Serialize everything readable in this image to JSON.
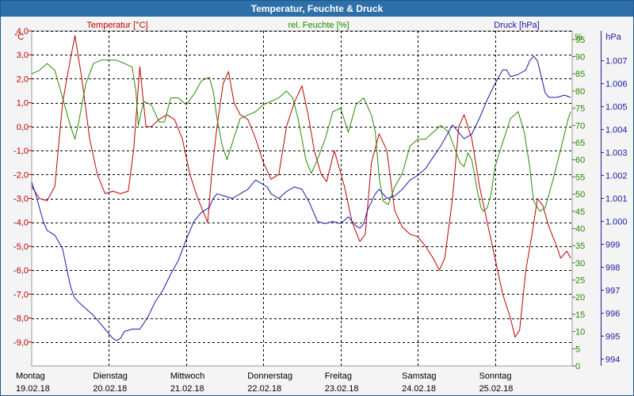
{
  "window": {
    "title": "Temperatur, Feuchte & Druck"
  },
  "chart_data": {
    "type": "line",
    "title": "Temperatur, Feuchte & Druck",
    "x_range": [
      0,
      7
    ],
    "x_labels": [
      {
        "day": "Montag",
        "date": "19.02.18",
        "x": 0
      },
      {
        "day": "Dienstag",
        "date": "20.02.18",
        "x": 1
      },
      {
        "day": "Mittwoch",
        "date": "21.02.18",
        "x": 2
      },
      {
        "day": "Donnerstag",
        "date": "22.02.18",
        "x": 3
      },
      {
        "day": "Freitag",
        "date": "23.02.18",
        "x": 4
      },
      {
        "day": "Samstag",
        "date": "24.02.18",
        "x": 5
      },
      {
        "day": "Sonntag",
        "date": "25.02.18",
        "x": 6
      }
    ],
    "axes": {
      "temperature": {
        "label": "Temperatur [°C]",
        "unit": "°C",
        "color": "#c00000",
        "range": [
          -10,
          4
        ],
        "ticks": [
          "4,0",
          "3,0",
          "2,0",
          "1,0",
          "0,0",
          "-1,0",
          "-2,0",
          "-3,0",
          "-4,0",
          "-5,0",
          "-6,0",
          "-7,0",
          "-8,0",
          "-9,0"
        ],
        "tick_values": [
          4,
          3,
          2,
          1,
          0,
          -1,
          -2,
          -3,
          -4,
          -5,
          -6,
          -7,
          -8,
          -9
        ]
      },
      "humidity": {
        "label": "rel. Feuchte [%]",
        "unit": "%",
        "color": "#2a8a00",
        "range": [
          0,
          97.5
        ],
        "ticks": [
          "95",
          "90",
          "85",
          "80",
          "75",
          "70",
          "65",
          "60",
          "55",
          "50",
          "45",
          "40",
          "35",
          "30",
          "25",
          "20",
          "15",
          "10",
          "5",
          "0"
        ],
        "tick_values": [
          95,
          90,
          85,
          80,
          75,
          70,
          65,
          60,
          55,
          50,
          45,
          40,
          35,
          30,
          25,
          20,
          15,
          10,
          5,
          0
        ]
      },
      "pressure": {
        "label": "Druck [hPa]",
        "unit": "hPa",
        "color": "#1a1aa6",
        "range": [
          993.7,
          1008.3
        ],
        "ticks": [
          "1.007",
          "1.006",
          "1.005",
          "1.004",
          "1.003",
          "1.002",
          "1.001",
          "1.000",
          "999",
          "998",
          "997",
          "996",
          "995",
          "994"
        ],
        "tick_values": [
          1007,
          1006,
          1005,
          1004,
          1003,
          1002,
          1001,
          1000,
          999,
          998,
          997,
          996,
          995,
          994
        ]
      }
    },
    "series": [
      {
        "name": "Temperatur",
        "axis": "temperature",
        "color": "#c00000",
        "points": [
          [
            0.0,
            -2.5
          ],
          [
            0.1,
            -3.0
          ],
          [
            0.2,
            -3.1
          ],
          [
            0.3,
            -2.5
          ],
          [
            0.4,
            1.0
          ],
          [
            0.5,
            2.8
          ],
          [
            0.56,
            3.8
          ],
          [
            0.65,
            2.0
          ],
          [
            0.75,
            -0.5
          ],
          [
            0.85,
            -2.0
          ],
          [
            0.95,
            -2.8
          ],
          [
            1.05,
            -2.7
          ],
          [
            1.15,
            -2.8
          ],
          [
            1.25,
            -2.7
          ],
          [
            1.32,
            -1.0
          ],
          [
            1.4,
            2.5
          ],
          [
            1.48,
            0.0
          ],
          [
            1.55,
            0.0
          ],
          [
            1.65,
            0.3
          ],
          [
            1.75,
            0.5
          ],
          [
            1.85,
            0.3
          ],
          [
            1.95,
            -0.5
          ],
          [
            2.05,
            -2.0
          ],
          [
            2.15,
            -3.0
          ],
          [
            2.28,
            -4.0
          ],
          [
            2.33,
            -2.0
          ],
          [
            2.4,
            0.0
          ],
          [
            2.48,
            1.8
          ],
          [
            2.55,
            2.3
          ],
          [
            2.62,
            1.0
          ],
          [
            2.7,
            0.5
          ],
          [
            2.8,
            0.3
          ],
          [
            2.9,
            -0.5
          ],
          [
            3.0,
            -1.5
          ],
          [
            3.1,
            -2.2
          ],
          [
            3.2,
            -2.0
          ],
          [
            3.3,
            0.0
          ],
          [
            3.4,
            1.0
          ],
          [
            3.5,
            1.7
          ],
          [
            3.58,
            0.5
          ],
          [
            3.66,
            -1.0
          ],
          [
            3.75,
            -2.0
          ],
          [
            3.82,
            -2.3
          ],
          [
            3.92,
            -1.0
          ],
          [
            4.05,
            -2.5
          ],
          [
            4.15,
            -4.0
          ],
          [
            4.25,
            -4.8
          ],
          [
            4.32,
            -4.5
          ],
          [
            4.4,
            -1.5
          ],
          [
            4.5,
            -0.3
          ],
          [
            4.6,
            -1.0
          ],
          [
            4.7,
            -3.5
          ],
          [
            4.8,
            -4.2
          ],
          [
            4.9,
            -4.5
          ],
          [
            5.0,
            -4.6
          ],
          [
            5.1,
            -5.0
          ],
          [
            5.2,
            -5.5
          ],
          [
            5.28,
            -6.0
          ],
          [
            5.35,
            -5.5
          ],
          [
            5.45,
            -3.0
          ],
          [
            5.53,
            0.0
          ],
          [
            5.6,
            0.5
          ],
          [
            5.7,
            -0.5
          ],
          [
            5.8,
            -2.5
          ],
          [
            5.9,
            -4.0
          ],
          [
            6.0,
            -5.5
          ],
          [
            6.1,
            -7.0
          ],
          [
            6.2,
            -8.0
          ],
          [
            6.26,
            -8.8
          ],
          [
            6.32,
            -8.5
          ],
          [
            6.4,
            -6.0
          ],
          [
            6.48,
            -4.5
          ],
          [
            6.55,
            -3.0
          ],
          [
            6.62,
            -3.3
          ],
          [
            6.7,
            -4.2
          ],
          [
            6.8,
            -5.0
          ],
          [
            6.85,
            -5.5
          ],
          [
            6.93,
            -5.2
          ],
          [
            6.98,
            -5.5
          ]
        ]
      },
      {
        "name": "rel. Feuchte",
        "axis": "humidity",
        "color": "#2a8a00",
        "points": [
          [
            0.0,
            85
          ],
          [
            0.1,
            86
          ],
          [
            0.2,
            88
          ],
          [
            0.3,
            86
          ],
          [
            0.4,
            78
          ],
          [
            0.5,
            70
          ],
          [
            0.56,
            66
          ],
          [
            0.6,
            70
          ],
          [
            0.7,
            82
          ],
          [
            0.8,
            88
          ],
          [
            0.9,
            89
          ],
          [
            1.0,
            89
          ],
          [
            1.1,
            89
          ],
          [
            1.2,
            88
          ],
          [
            1.3,
            87
          ],
          [
            1.35,
            80
          ],
          [
            1.38,
            70
          ],
          [
            1.45,
            77
          ],
          [
            1.55,
            76
          ],
          [
            1.65,
            71
          ],
          [
            1.72,
            71
          ],
          [
            1.8,
            78
          ],
          [
            1.9,
            78
          ],
          [
            2.0,
            76
          ],
          [
            2.1,
            79
          ],
          [
            2.2,
            83
          ],
          [
            2.3,
            84
          ],
          [
            2.35,
            80
          ],
          [
            2.4,
            72
          ],
          [
            2.47,
            64
          ],
          [
            2.53,
            60
          ],
          [
            2.6,
            65
          ],
          [
            2.7,
            72
          ],
          [
            2.8,
            73
          ],
          [
            2.9,
            74
          ],
          [
            3.0,
            76
          ],
          [
            3.1,
            77
          ],
          [
            3.2,
            78
          ],
          [
            3.3,
            80
          ],
          [
            3.38,
            78
          ],
          [
            3.45,
            72
          ],
          [
            3.55,
            60
          ],
          [
            3.62,
            56
          ],
          [
            3.7,
            60
          ],
          [
            3.8,
            66
          ],
          [
            3.9,
            74
          ],
          [
            4.0,
            75
          ],
          [
            4.1,
            68
          ],
          [
            4.2,
            76
          ],
          [
            4.3,
            78
          ],
          [
            4.4,
            73
          ],
          [
            4.45,
            68
          ],
          [
            4.5,
            55
          ],
          [
            4.55,
            48
          ],
          [
            4.62,
            47
          ],
          [
            4.7,
            52
          ],
          [
            4.8,
            56
          ],
          [
            4.9,
            64
          ],
          [
            5.0,
            66
          ],
          [
            5.1,
            66
          ],
          [
            5.2,
            68
          ],
          [
            5.3,
            70
          ],
          [
            5.4,
            68
          ],
          [
            5.5,
            62
          ],
          [
            5.55,
            59
          ],
          [
            5.6,
            58
          ],
          [
            5.65,
            62
          ],
          [
            5.7,
            60
          ],
          [
            5.78,
            50
          ],
          [
            5.82,
            46
          ],
          [
            5.85,
            45
          ],
          [
            5.9,
            46
          ],
          [
            5.95,
            50
          ],
          [
            6.0,
            58
          ],
          [
            6.1,
            65
          ],
          [
            6.2,
            72
          ],
          [
            6.3,
            74
          ],
          [
            6.38,
            68
          ],
          [
            6.45,
            58
          ],
          [
            6.5,
            48
          ],
          [
            6.58,
            45
          ],
          [
            6.65,
            46
          ],
          [
            6.75,
            54
          ],
          [
            6.85,
            63
          ],
          [
            6.95,
            72
          ],
          [
            6.98,
            74
          ]
        ]
      },
      {
        "name": "Druck",
        "axis": "pressure",
        "color": "#1a1aa6",
        "points": [
          [
            0.0,
            1001.7
          ],
          [
            0.05,
            1001.2
          ],
          [
            0.1,
            1000.6
          ],
          [
            0.15,
            1000.0
          ],
          [
            0.2,
            999.6
          ],
          [
            0.3,
            999.4
          ],
          [
            0.4,
            998.8
          ],
          [
            0.45,
            998.0
          ],
          [
            0.5,
            997.2
          ],
          [
            0.55,
            996.7
          ],
          [
            0.6,
            996.5
          ],
          [
            0.7,
            996.2
          ],
          [
            0.8,
            995.9
          ],
          [
            0.9,
            995.5
          ],
          [
            1.0,
            995.1
          ],
          [
            1.05,
            994.9
          ],
          [
            1.1,
            994.8
          ],
          [
            1.15,
            994.9
          ],
          [
            1.2,
            995.2
          ],
          [
            1.3,
            995.3
          ],
          [
            1.4,
            995.3
          ],
          [
            1.5,
            995.8
          ],
          [
            1.6,
            996.5
          ],
          [
            1.7,
            997.0
          ],
          [
            1.8,
            997.7
          ],
          [
            1.9,
            998.3
          ],
          [
            2.0,
            999.2
          ],
          [
            2.1,
            1000.0
          ],
          [
            2.2,
            1000.4
          ],
          [
            2.3,
            1000.6
          ],
          [
            2.35,
            1001.0
          ],
          [
            2.4,
            1001.2
          ],
          [
            2.5,
            1001.1
          ],
          [
            2.6,
            1001.0
          ],
          [
            2.7,
            1001.2
          ],
          [
            2.8,
            1001.4
          ],
          [
            2.9,
            1001.8
          ],
          [
            3.0,
            1001.6
          ],
          [
            3.05,
            1001.5
          ],
          [
            3.1,
            1001.2
          ],
          [
            3.2,
            1001.0
          ],
          [
            3.3,
            1001.3
          ],
          [
            3.4,
            1001.5
          ],
          [
            3.5,
            1001.4
          ],
          [
            3.6,
            1000.8
          ],
          [
            3.7,
            1000.0
          ],
          [
            3.8,
            999.9
          ],
          [
            3.9,
            1000.0
          ],
          [
            4.0,
            999.9
          ],
          [
            4.1,
            1000.2
          ],
          [
            4.2,
            999.8
          ],
          [
            4.25,
            999.7
          ],
          [
            4.3,
            999.9
          ],
          [
            4.35,
            1000.5
          ],
          [
            4.45,
            1001.2
          ],
          [
            4.5,
            1001.4
          ],
          [
            4.6,
            1001.0
          ],
          [
            4.7,
            1001.1
          ],
          [
            4.8,
            1001.4
          ],
          [
            4.9,
            1001.8
          ],
          [
            5.0,
            1002.0
          ],
          [
            5.1,
            1002.3
          ],
          [
            5.2,
            1002.8
          ],
          [
            5.3,
            1003.3
          ],
          [
            5.4,
            1003.9
          ],
          [
            5.45,
            1004.2
          ],
          [
            5.5,
            1004.0
          ],
          [
            5.6,
            1003.6
          ],
          [
            5.7,
            1003.8
          ],
          [
            5.8,
            1004.5
          ],
          [
            5.9,
            1005.3
          ],
          [
            6.0,
            1006.0
          ],
          [
            6.1,
            1006.6
          ],
          [
            6.15,
            1006.6
          ],
          [
            6.2,
            1006.3
          ],
          [
            6.3,
            1006.4
          ],
          [
            6.4,
            1006.6
          ],
          [
            6.45,
            1007.0
          ],
          [
            6.5,
            1007.2
          ],
          [
            6.55,
            1007.0
          ],
          [
            6.6,
            1006.3
          ],
          [
            6.65,
            1005.6
          ],
          [
            6.7,
            1005.4
          ],
          [
            6.8,
            1005.4
          ],
          [
            6.9,
            1005.5
          ],
          [
            6.98,
            1005.4
          ]
        ]
      }
    ]
  }
}
